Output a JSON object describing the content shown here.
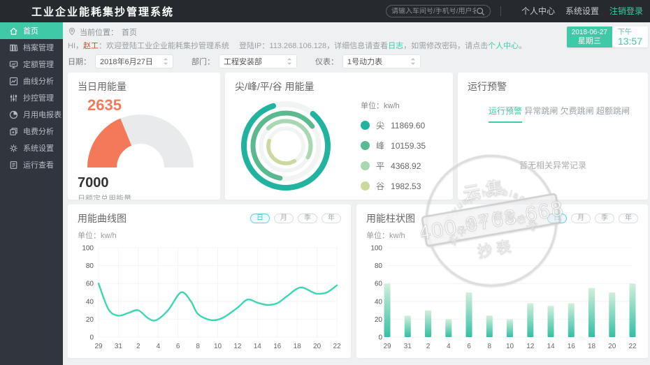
{
  "app": {
    "title": "工业企业能耗集抄管理系统"
  },
  "colors": {
    "accent_teal": "#3fc9a6",
    "alert_orange": "#f4795b",
    "active_cyan": "#3fc3d8"
  },
  "header": {
    "search_placeholder": "请输入车间号/手机号/用户名",
    "links": [
      {
        "key": "profile",
        "label": "个人中心",
        "accent": false
      },
      {
        "key": "settings",
        "label": "系统设置",
        "accent": false
      },
      {
        "key": "logout",
        "label": "注销登录",
        "accent": true
      }
    ]
  },
  "sidebar": {
    "items": [
      {
        "key": "home",
        "label": "首页",
        "icon": "home-icon",
        "active": true
      },
      {
        "key": "archives",
        "label": "档案管理",
        "icon": "archive-icon",
        "active": false
      },
      {
        "key": "quota",
        "label": "定额管理",
        "icon": "monitor-icon",
        "active": false
      },
      {
        "key": "curve-analysis",
        "label": "曲线分析",
        "icon": "curve-icon",
        "active": false
      },
      {
        "key": "meter-control",
        "label": "抄控管理",
        "icon": "sliders-icon",
        "active": false
      },
      {
        "key": "monthly-report",
        "label": "月用电报表",
        "icon": "pie-icon",
        "active": false
      },
      {
        "key": "fee-analysis",
        "label": "电费分析",
        "icon": "files-icon",
        "active": false
      },
      {
        "key": "system-settings",
        "label": "系统设置",
        "icon": "gear-icon",
        "active": false
      },
      {
        "key": "run-view",
        "label": "运行查看",
        "icon": "log-icon",
        "active": false
      }
    ]
  },
  "breadcrumb": {
    "label": "当前位置：",
    "value": "首页"
  },
  "greeting": {
    "prefix": "HI，",
    "user": "赵工",
    "text1": "：欢迎登陆工业企业能耗集抄管理系统",
    "ip_text": "登陆IP：113.268.106.128，详细信息请查看",
    "log_link": "日志",
    "text2": "，如需修改密码，请点击",
    "profile_link": "个人中心",
    "suffix": "。"
  },
  "datetime": {
    "date": "2018-06-27",
    "weekday": "星期三",
    "period": "下午",
    "time": "13:57"
  },
  "filters": [
    {
      "key": "date",
      "label": "日期：",
      "value": "2018年6月27日"
    },
    {
      "key": "department",
      "label": "部门：",
      "value": "工程安装部"
    },
    {
      "key": "meter",
      "label": "仪表：",
      "value": "1号动力表"
    }
  ],
  "labels": {
    "unit": "单位：kw/h"
  },
  "alerts": {
    "title": "运行预警",
    "tabs": [
      "运行预警",
      "异常跳闸",
      "欠费跳闸",
      "超额跳闸"
    ],
    "active_tab": 0,
    "empty_text": "暂无相关异常记录"
  },
  "period_buttons": {
    "labels": [
      "日",
      "月",
      "季",
      "年"
    ],
    "active": 0
  },
  "watermark": {
    "arc_top": "www.yunjichaobiao.com",
    "name_top": "云集",
    "phone": "400-0763-668",
    "name_bottom": "抄表",
    "arc_bottom": "实体批发 盗图必究"
  },
  "chart_data": [
    {
      "type": "gauge",
      "title": "当日用能量",
      "value": 2635,
      "max": 7000,
      "label": "日额定总用能量",
      "color": "#f4795b",
      "track_color": "#e9eaeb"
    },
    {
      "type": "ring",
      "title": "尖/峰/平/谷 用能量",
      "unit": "kw/h",
      "series": [
        {
          "name": "尖",
          "value": 11869.6,
          "value_text": "11869.60",
          "color": "#21b2a0"
        },
        {
          "name": "峰",
          "value": 10159.35,
          "value_text": "10159.35",
          "color": "#5bb98f"
        },
        {
          "name": "平",
          "value": 4368.92,
          "value_text": "4368.92",
          "color": "#aad7b2"
        },
        {
          "name": "谷",
          "value": 1982.53,
          "value_text": "1982.53",
          "color": "#cbd99c"
        }
      ]
    },
    {
      "type": "line",
      "title": "用能曲线图",
      "unit": "kw/h",
      "color": "#3ed5b3",
      "ylim": [
        0,
        100
      ],
      "yticks": [
        0,
        20,
        40,
        60,
        80,
        100
      ],
      "xticks": [
        "29",
        "31",
        "2",
        "4",
        "6",
        "8",
        "10",
        "12",
        "14",
        "16",
        "18",
        "20",
        "22"
      ],
      "x_range": [
        0,
        24
      ],
      "points": [
        [
          0,
          60
        ],
        [
          1,
          31
        ],
        [
          2,
          24
        ],
        [
          3,
          27
        ],
        [
          4,
          30
        ],
        [
          5,
          21
        ],
        [
          5.8,
          19
        ],
        [
          7,
          30
        ],
        [
          8.3,
          50
        ],
        [
          9.3,
          40
        ],
        [
          10,
          26
        ],
        [
          11.3,
          19
        ],
        [
          12.5,
          21.5
        ],
        [
          14,
          33
        ],
        [
          15,
          42
        ],
        [
          16,
          38.5
        ],
        [
          17,
          36
        ],
        [
          18,
          38
        ],
        [
          19,
          46
        ],
        [
          20.3,
          55.5
        ],
        [
          21.5,
          50.5
        ],
        [
          22,
          48.5
        ],
        [
          23,
          50
        ],
        [
          24,
          58
        ]
      ]
    },
    {
      "type": "bar",
      "title": "用能柱状图",
      "unit": "kw/h",
      "gradient": [
        "#d2efdc",
        "#33c0a3"
      ],
      "ylim": [
        0,
        100
      ],
      "yticks": [
        0,
        20,
        40,
        60,
        80,
        100
      ],
      "categories": [
        "29",
        "31",
        "2",
        "4",
        "6",
        "8",
        "10",
        "12",
        "14",
        "16",
        "18",
        "20",
        "22"
      ],
      "values": [
        60,
        24,
        30,
        20,
        50,
        24,
        20,
        38,
        35,
        38,
        55,
        50,
        60
      ]
    }
  ]
}
